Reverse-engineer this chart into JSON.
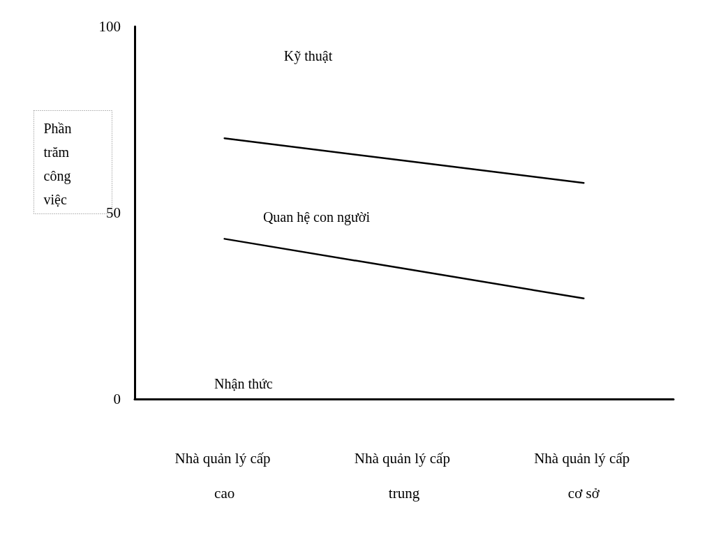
{
  "chart_data": {
    "type": "line",
    "ylabel": "Phần trăm công việc",
    "categories": [
      "Nhà quản lý cấp cao",
      "Nhà quản lý cấp trung",
      "Nhà quản lý cấp cơ sở"
    ],
    "series": [
      {
        "color": "#000000",
        "values": [
          70,
          64,
          58
        ]
      },
      {
        "color": "#000000",
        "values": [
          43,
          35,
          27
        ]
      }
    ],
    "ylim": [
      0,
      100
    ],
    "yticks": [
      0,
      50,
      100
    ],
    "grid": false,
    "marker": "none",
    "line_style": "solid",
    "annotations": [
      "Kỹ thuật",
      "Quan hệ con người",
      "Nhận thức"
    ]
  }
}
